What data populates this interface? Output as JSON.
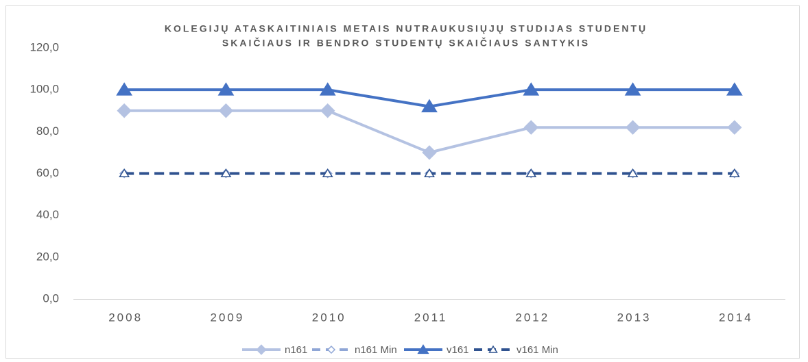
{
  "chart_data": {
    "type": "line",
    "title_lines": [
      "KOLEGIJŲ ATASKAITINIAIS METAIS NUTRAUKUSIŲJŲ STUDIJAS STUDENTŲ",
      "SKAIČIAUS IR BENDRO STUDENTŲ SKAIČIAUS SANTYKIS"
    ],
    "categories": [
      "2008",
      "2009",
      "2010",
      "2011",
      "2012",
      "2013",
      "2014"
    ],
    "series": [
      {
        "name": "n161",
        "color": "#b4c2e2",
        "marker": "diamond",
        "dashed": false,
        "hollow": false,
        "values": [
          90,
          90,
          90,
          70,
          82,
          82,
          82
        ]
      },
      {
        "name": "n161 Min",
        "color": "#8fa6d6",
        "marker": "diamond",
        "dashed": true,
        "hollow": true,
        "values": [
          60,
          60,
          60,
          60,
          60,
          60,
          60
        ]
      },
      {
        "name": "v161",
        "color": "#4472c4",
        "marker": "triangle",
        "dashed": false,
        "hollow": false,
        "values": [
          100,
          100,
          100,
          92,
          100,
          100,
          100
        ]
      },
      {
        "name": "v161 Min",
        "color": "#2f528f",
        "marker": "triangle",
        "dashed": true,
        "hollow": true,
        "values": [
          60,
          60,
          60,
          60,
          60,
          60,
          60
        ]
      }
    ],
    "ylim": [
      0,
      120
    ],
    "yticks": [
      {
        "value": 0,
        "label": "0,0"
      },
      {
        "value": 20,
        "label": "20,0"
      },
      {
        "value": 40,
        "label": "40,0"
      },
      {
        "value": 60,
        "label": "60,0"
      },
      {
        "value": 80,
        "label": "80,0"
      },
      {
        "value": 100,
        "label": "100,0"
      },
      {
        "value": 120,
        "label": "120,0"
      }
    ],
    "grid": false,
    "legend": "bottom"
  }
}
